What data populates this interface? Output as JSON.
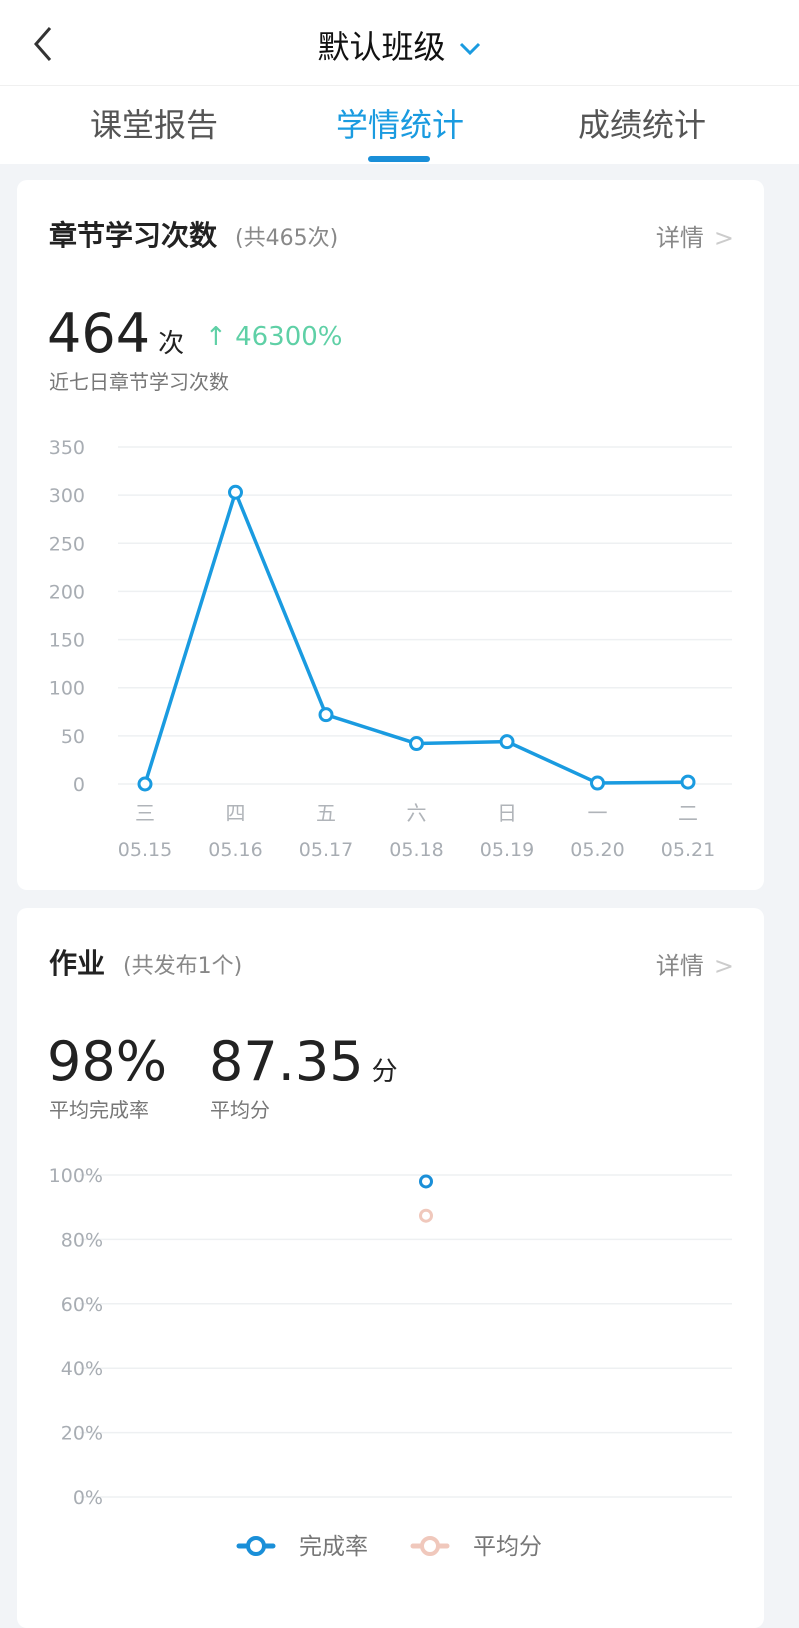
{
  "header": {
    "title": "默认班级",
    "back_icon": "chevron-left-icon",
    "dropdown_icon": "chevron-down-icon"
  },
  "tabs": [
    {
      "label": "课堂报告"
    },
    {
      "label": "学情统计",
      "active": true
    },
    {
      "label": "成绩统计"
    }
  ],
  "colors": {
    "accent": "#1a9be0",
    "growth": "#5fd0a6",
    "series_score": "#f0c8bc"
  },
  "study": {
    "title": "章节学习次数",
    "total": "(共465次)",
    "detail": "详情",
    "value": "464",
    "unit": "次",
    "growth": "46300%",
    "caption": "近七日章节学习次数"
  },
  "homework": {
    "title": "作业",
    "total": "(共发布1个)",
    "detail": "详情",
    "rate": "98%",
    "rate_caption": "平均完成率",
    "score": "87.35",
    "score_unit": "分",
    "score_caption": "平均分"
  },
  "chart_data": [
    {
      "type": "line",
      "weekdays": [
        "三",
        "四",
        "五",
        "六",
        "日",
        "一",
        "二"
      ],
      "categories": [
        "05.15",
        "05.16",
        "05.17",
        "05.18",
        "05.19",
        "05.20",
        "05.21"
      ],
      "values": [
        0,
        303,
        72,
        42,
        44,
        1,
        2
      ],
      "ylim": [
        0,
        350
      ],
      "yticks": [
        0,
        50,
        100,
        150,
        200,
        250,
        300,
        350
      ],
      "grid": true
    },
    {
      "type": "scatter",
      "ylim": [
        0,
        100
      ],
      "yticks": [
        "0%",
        "20%",
        "40%",
        "60%",
        "80%",
        "100%"
      ],
      "grid": true,
      "legend_position": "bottom",
      "series": [
        {
          "name": "完成率",
          "values": [
            98
          ],
          "color": "#1a8fd8"
        },
        {
          "name": "平均分",
          "values": [
            87.35
          ],
          "color": "#f0c8bc"
        }
      ]
    }
  ]
}
